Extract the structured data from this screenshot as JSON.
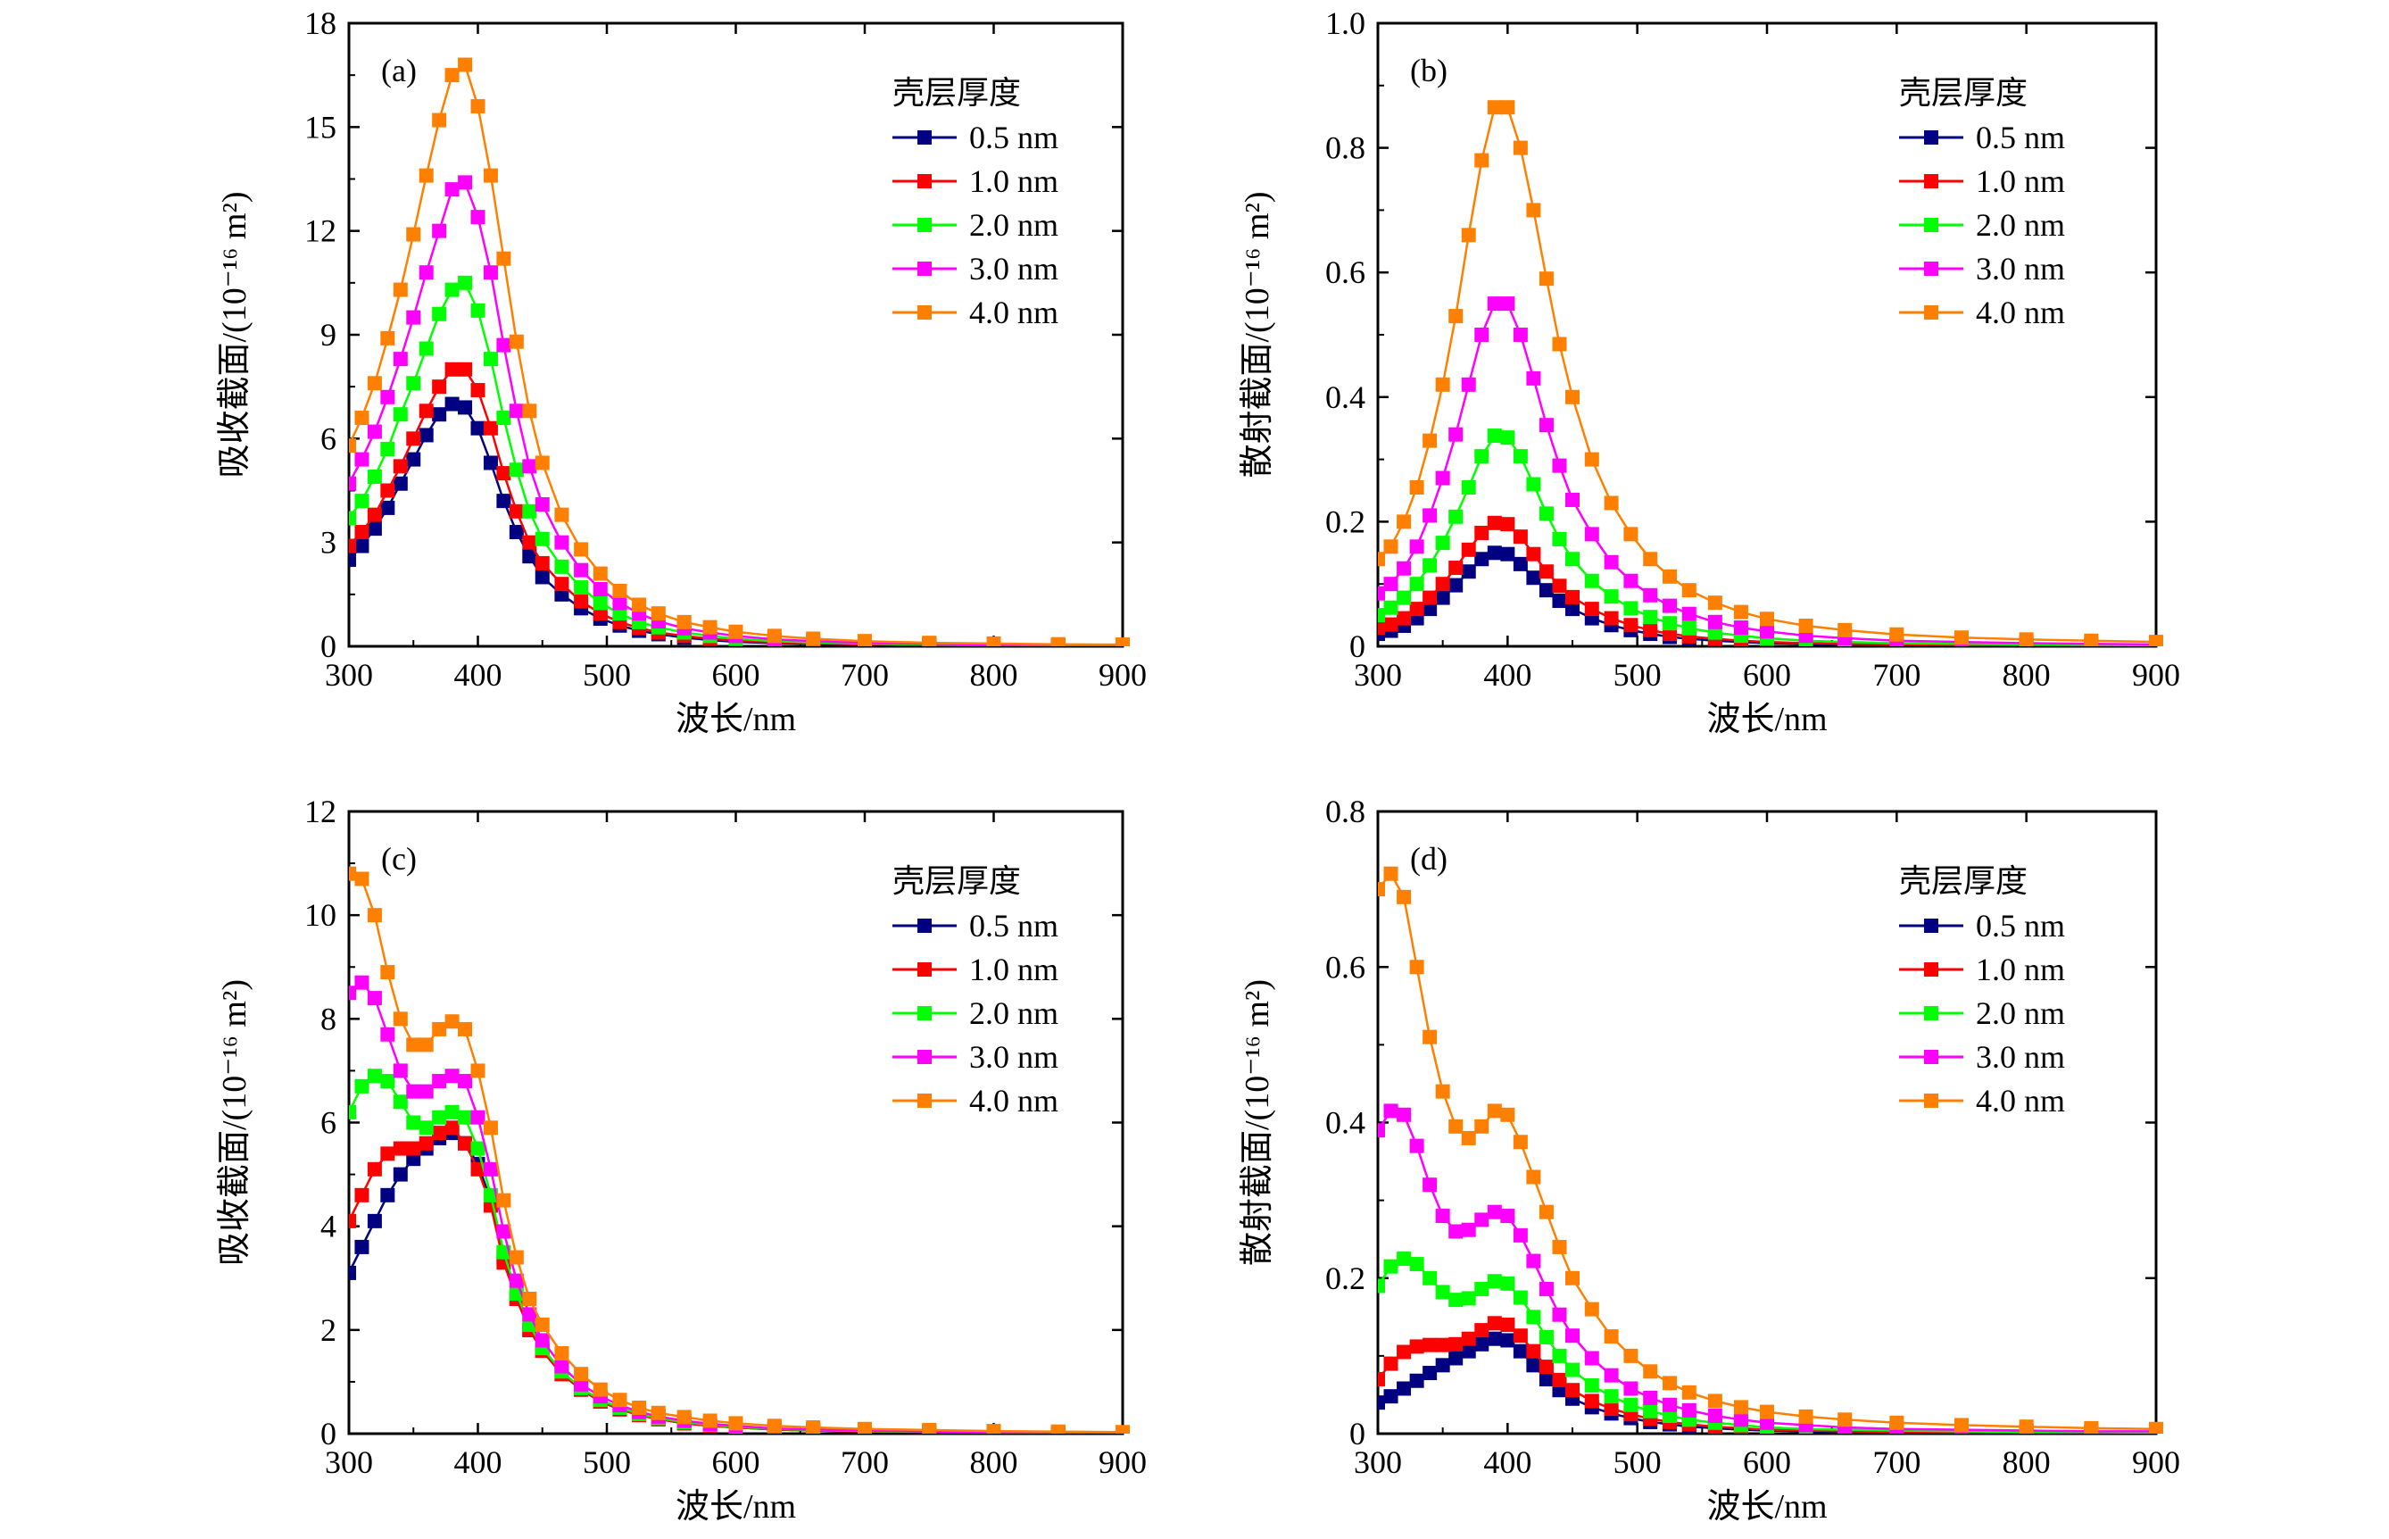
{
  "chart_data": [
    {
      "type": "line",
      "panel_label": "(a)",
      "xlabel": "波长/nm",
      "ylabel": "吸收截面/(10⁻¹⁶ m²)",
      "xlim": [
        300,
        900
      ],
      "ylim": [
        0,
        18
      ],
      "xticks": [
        300,
        400,
        500,
        600,
        700,
        800,
        900
      ],
      "yticks": [
        0,
        3,
        6,
        9,
        12,
        15,
        18
      ],
      "legend_title": "壳层厚度",
      "legend_position": "top-right",
      "x": [
        300,
        310,
        320,
        330,
        340,
        350,
        360,
        370,
        380,
        390,
        400,
        410,
        420,
        430,
        440,
        450,
        465,
        480,
        495,
        510,
        525,
        540,
        560,
        580,
        600,
        630,
        660,
        700,
        750,
        800,
        850,
        900
      ],
      "series": [
        {
          "name": "0.5 nm",
          "color": "#000080",
          "values": [
            2.5,
            2.9,
            3.4,
            4.0,
            4.7,
            5.4,
            6.1,
            6.7,
            7.0,
            6.9,
            6.3,
            5.3,
            4.2,
            3.3,
            2.6,
            2.0,
            1.5,
            1.1,
            0.8,
            0.6,
            0.45,
            0.35,
            0.25,
            0.18,
            0.13,
            0.09,
            0.07,
            0.05,
            0.03,
            0.02,
            0.015,
            0.01
          ]
        },
        {
          "name": "1.0 nm",
          "color": "#ff0000",
          "values": [
            2.9,
            3.3,
            3.8,
            4.5,
            5.2,
            6.0,
            6.8,
            7.5,
            8.0,
            8.0,
            7.4,
            6.3,
            5.0,
            3.9,
            3.0,
            2.4,
            1.8,
            1.3,
            0.95,
            0.7,
            0.53,
            0.4,
            0.3,
            0.22,
            0.16,
            0.11,
            0.08,
            0.06,
            0.04,
            0.03,
            0.02,
            0.015
          ]
        },
        {
          "name": "2.0 nm",
          "color": "#00ff00",
          "values": [
            3.7,
            4.2,
            4.9,
            5.7,
            6.7,
            7.6,
            8.6,
            9.6,
            10.3,
            10.5,
            9.7,
            8.3,
            6.6,
            5.1,
            3.9,
            3.1,
            2.3,
            1.7,
            1.25,
            0.95,
            0.7,
            0.55,
            0.4,
            0.3,
            0.22,
            0.15,
            0.11,
            0.08,
            0.05,
            0.04,
            0.03,
            0.02
          ]
        },
        {
          "name": "3.0 nm",
          "color": "#ff00ff",
          "values": [
            4.7,
            5.4,
            6.2,
            7.2,
            8.3,
            9.5,
            10.8,
            12.0,
            13.2,
            13.4,
            12.4,
            10.8,
            8.7,
            6.8,
            5.2,
            4.1,
            3.0,
            2.2,
            1.65,
            1.25,
            0.95,
            0.72,
            0.52,
            0.4,
            0.3,
            0.2,
            0.15,
            0.1,
            0.07,
            0.05,
            0.04,
            0.03
          ]
        },
        {
          "name": "4.0 nm",
          "color": "#ff8000",
          "values": [
            5.8,
            6.6,
            7.6,
            8.9,
            10.3,
            11.9,
            13.6,
            15.2,
            16.5,
            16.8,
            15.6,
            13.6,
            11.2,
            8.8,
            6.8,
            5.3,
            3.8,
            2.8,
            2.1,
            1.6,
            1.2,
            0.95,
            0.7,
            0.55,
            0.42,
            0.3,
            0.22,
            0.15,
            0.1,
            0.08,
            0.06,
            0.05
          ]
        }
      ]
    },
    {
      "type": "line",
      "panel_label": "(b)",
      "xlabel": "波长/nm",
      "ylabel": "散射截面/(10⁻¹⁶ m²)",
      "xlim": [
        300,
        900
      ],
      "ylim": [
        0,
        1.0
      ],
      "xticks": [
        300,
        400,
        500,
        600,
        700,
        800,
        900
      ],
      "yticks": [
        "0",
        "0.2",
        "0.4",
        "0.6",
        "0.8",
        "1.0"
      ],
      "legend_title": "壳层厚度",
      "legend_position": "top-right",
      "x": [
        300,
        310,
        320,
        330,
        340,
        350,
        360,
        370,
        380,
        390,
        400,
        410,
        420,
        430,
        440,
        450,
        465,
        480,
        495,
        510,
        525,
        540,
        560,
        580,
        600,
        630,
        660,
        700,
        750,
        800,
        850,
        900
      ],
      "series": [
        {
          "name": "0.5 nm",
          "color": "#000080",
          "values": [
            0.02,
            0.025,
            0.033,
            0.045,
            0.06,
            0.078,
            0.098,
            0.12,
            0.14,
            0.15,
            0.148,
            0.132,
            0.11,
            0.09,
            0.073,
            0.06,
            0.045,
            0.034,
            0.026,
            0.02,
            0.015,
            0.012,
            0.009,
            0.007,
            0.005,
            0.004,
            0.003,
            0.002,
            0.0015,
            0.001,
            0.001,
            0.001
          ]
        },
        {
          "name": "1.0 nm",
          "color": "#ff0000",
          "values": [
            0.03,
            0.035,
            0.045,
            0.06,
            0.078,
            0.1,
            0.126,
            0.155,
            0.182,
            0.198,
            0.196,
            0.176,
            0.148,
            0.12,
            0.097,
            0.079,
            0.06,
            0.045,
            0.034,
            0.026,
            0.02,
            0.016,
            0.012,
            0.009,
            0.007,
            0.005,
            0.004,
            0.003,
            0.002,
            0.0015,
            0.001,
            0.001
          ]
        },
        {
          "name": "2.0 nm",
          "color": "#00ff00",
          "values": [
            0.05,
            0.062,
            0.078,
            0.1,
            0.13,
            0.166,
            0.208,
            0.255,
            0.305,
            0.338,
            0.335,
            0.305,
            0.26,
            0.213,
            0.172,
            0.14,
            0.105,
            0.08,
            0.061,
            0.047,
            0.037,
            0.029,
            0.022,
            0.017,
            0.013,
            0.009,
            0.007,
            0.005,
            0.004,
            0.003,
            0.002,
            0.002
          ]
        },
        {
          "name": "3.0 nm",
          "color": "#ff00ff",
          "values": [
            0.085,
            0.1,
            0.125,
            0.16,
            0.21,
            0.27,
            0.34,
            0.42,
            0.5,
            0.55,
            0.55,
            0.5,
            0.43,
            0.355,
            0.29,
            0.235,
            0.18,
            0.135,
            0.105,
            0.082,
            0.065,
            0.052,
            0.039,
            0.03,
            0.024,
            0.017,
            0.013,
            0.009,
            0.007,
            0.005,
            0.004,
            0.003
          ]
        },
        {
          "name": "4.0 nm",
          "color": "#ff8000",
          "values": [
            0.14,
            0.16,
            0.2,
            0.255,
            0.33,
            0.42,
            0.53,
            0.66,
            0.78,
            0.865,
            0.865,
            0.8,
            0.7,
            0.59,
            0.485,
            0.4,
            0.3,
            0.23,
            0.18,
            0.14,
            0.112,
            0.09,
            0.07,
            0.055,
            0.044,
            0.033,
            0.026,
            0.019,
            0.014,
            0.011,
            0.009,
            0.007
          ]
        }
      ]
    },
    {
      "type": "line",
      "panel_label": "(c)",
      "xlabel": "波长/nm",
      "ylabel": "吸收截面/(10⁻¹⁶ m²)",
      "xlim": [
        300,
        900
      ],
      "ylim": [
        0,
        12
      ],
      "xticks": [
        300,
        400,
        500,
        600,
        700,
        800,
        900
      ],
      "yticks": [
        0,
        2,
        4,
        6,
        8,
        10,
        12
      ],
      "legend_title": "壳层厚度",
      "legend_position": "top-right",
      "x": [
        300,
        310,
        320,
        330,
        340,
        350,
        360,
        370,
        380,
        390,
        400,
        410,
        420,
        430,
        440,
        450,
        465,
        480,
        495,
        510,
        525,
        540,
        560,
        580,
        600,
        630,
        660,
        700,
        750,
        800,
        850,
        900
      ],
      "series": [
        {
          "name": "0.5 nm",
          "color": "#000080",
          "values": [
            3.1,
            3.6,
            4.1,
            4.6,
            5.0,
            5.3,
            5.5,
            5.7,
            5.8,
            5.6,
            5.2,
            4.5,
            3.4,
            2.6,
            2.0,
            1.6,
            1.15,
            0.85,
            0.62,
            0.47,
            0.36,
            0.28,
            0.2,
            0.15,
            0.12,
            0.08,
            0.06,
            0.04,
            0.03,
            0.02,
            0.015,
            0.01
          ]
        },
        {
          "name": "1.0 nm",
          "color": "#ff0000",
          "values": [
            4.1,
            4.6,
            5.1,
            5.4,
            5.5,
            5.5,
            5.6,
            5.8,
            5.9,
            5.6,
            5.1,
            4.4,
            3.3,
            2.6,
            2.0,
            1.6,
            1.15,
            0.85,
            0.62,
            0.47,
            0.36,
            0.28,
            0.2,
            0.15,
            0.12,
            0.08,
            0.06,
            0.04,
            0.03,
            0.02,
            0.015,
            0.01
          ]
        },
        {
          "name": "2.0 nm",
          "color": "#00ff00",
          "values": [
            6.2,
            6.7,
            6.9,
            6.8,
            6.4,
            6.0,
            5.9,
            6.1,
            6.2,
            6.1,
            5.5,
            4.6,
            3.5,
            2.7,
            2.1,
            1.65,
            1.2,
            0.88,
            0.65,
            0.5,
            0.38,
            0.3,
            0.22,
            0.17,
            0.13,
            0.09,
            0.07,
            0.05,
            0.035,
            0.025,
            0.02,
            0.015
          ]
        },
        {
          "name": "3.0 nm",
          "color": "#ff00ff",
          "values": [
            8.5,
            8.7,
            8.4,
            7.7,
            7.0,
            6.6,
            6.6,
            6.8,
            6.9,
            6.8,
            6.1,
            5.1,
            3.9,
            2.95,
            2.3,
            1.8,
            1.3,
            0.95,
            0.72,
            0.55,
            0.42,
            0.33,
            0.25,
            0.19,
            0.15,
            0.1,
            0.08,
            0.06,
            0.04,
            0.03,
            0.025,
            0.02
          ]
        },
        {
          "name": "4.0 nm",
          "color": "#ff8000",
          "values": [
            10.8,
            10.7,
            10.0,
            8.9,
            8.0,
            7.5,
            7.5,
            7.8,
            7.95,
            7.8,
            7.0,
            5.9,
            4.5,
            3.4,
            2.6,
            2.1,
            1.55,
            1.15,
            0.85,
            0.65,
            0.5,
            0.4,
            0.32,
            0.25,
            0.2,
            0.15,
            0.12,
            0.09,
            0.07,
            0.05,
            0.04,
            0.03
          ]
        }
      ]
    },
    {
      "type": "line",
      "panel_label": "(d)",
      "xlabel": "波长/nm",
      "ylabel": "散射截面/(10⁻¹⁶ m²)",
      "xlim": [
        300,
        900
      ],
      "ylim": [
        0,
        0.8
      ],
      "xticks": [
        300,
        400,
        500,
        600,
        700,
        800,
        900
      ],
      "yticks": [
        "0",
        "0.2",
        "0.4",
        "0.6",
        "0.8"
      ],
      "legend_title": "壳层厚度",
      "legend_position": "top-right",
      "x": [
        300,
        310,
        320,
        330,
        340,
        350,
        360,
        370,
        380,
        390,
        400,
        410,
        420,
        430,
        440,
        450,
        465,
        480,
        495,
        510,
        525,
        540,
        560,
        580,
        600,
        630,
        660,
        700,
        750,
        800,
        850,
        900
      ],
      "series": [
        {
          "name": "0.5 nm",
          "color": "#000080",
          "values": [
            0.04,
            0.048,
            0.058,
            0.068,
            0.078,
            0.088,
            0.097,
            0.106,
            0.115,
            0.122,
            0.12,
            0.106,
            0.088,
            0.07,
            0.056,
            0.045,
            0.034,
            0.026,
            0.02,
            0.015,
            0.012,
            0.009,
            0.007,
            0.005,
            0.004,
            0.003,
            0.002,
            0.0015,
            0.001,
            0.001,
            0.001,
            0.001
          ]
        },
        {
          "name": "1.0 nm",
          "color": "#ff0000",
          "values": [
            0.07,
            0.09,
            0.105,
            0.112,
            0.114,
            0.114,
            0.115,
            0.122,
            0.133,
            0.142,
            0.14,
            0.126,
            0.106,
            0.086,
            0.069,
            0.056,
            0.042,
            0.032,
            0.025,
            0.019,
            0.015,
            0.012,
            0.009,
            0.007,
            0.005,
            0.004,
            0.003,
            0.002,
            0.0015,
            0.001,
            0.001,
            0.001
          ]
        },
        {
          "name": "2.0 nm",
          "color": "#00ff00",
          "values": [
            0.19,
            0.215,
            0.225,
            0.218,
            0.2,
            0.182,
            0.172,
            0.174,
            0.186,
            0.196,
            0.193,
            0.175,
            0.15,
            0.124,
            0.1,
            0.082,
            0.062,
            0.048,
            0.037,
            0.029,
            0.023,
            0.018,
            0.014,
            0.011,
            0.008,
            0.006,
            0.005,
            0.004,
            0.003,
            0.002,
            0.002,
            0.001
          ]
        },
        {
          "name": "3.0 nm",
          "color": "#ff00ff",
          "values": [
            0.39,
            0.415,
            0.41,
            0.37,
            0.32,
            0.28,
            0.26,
            0.262,
            0.275,
            0.285,
            0.28,
            0.255,
            0.222,
            0.186,
            0.153,
            0.126,
            0.097,
            0.075,
            0.058,
            0.046,
            0.037,
            0.03,
            0.023,
            0.018,
            0.014,
            0.011,
            0.008,
            0.006,
            0.005,
            0.004,
            0.003,
            0.003
          ]
        },
        {
          "name": "4.0 nm",
          "color": "#ff8000",
          "values": [
            0.7,
            0.72,
            0.69,
            0.6,
            0.51,
            0.44,
            0.395,
            0.38,
            0.395,
            0.415,
            0.41,
            0.375,
            0.33,
            0.285,
            0.24,
            0.2,
            0.16,
            0.125,
            0.1,
            0.08,
            0.065,
            0.053,
            0.042,
            0.034,
            0.028,
            0.022,
            0.018,
            0.014,
            0.011,
            0.009,
            0.007,
            0.006
          ]
        }
      ]
    }
  ]
}
